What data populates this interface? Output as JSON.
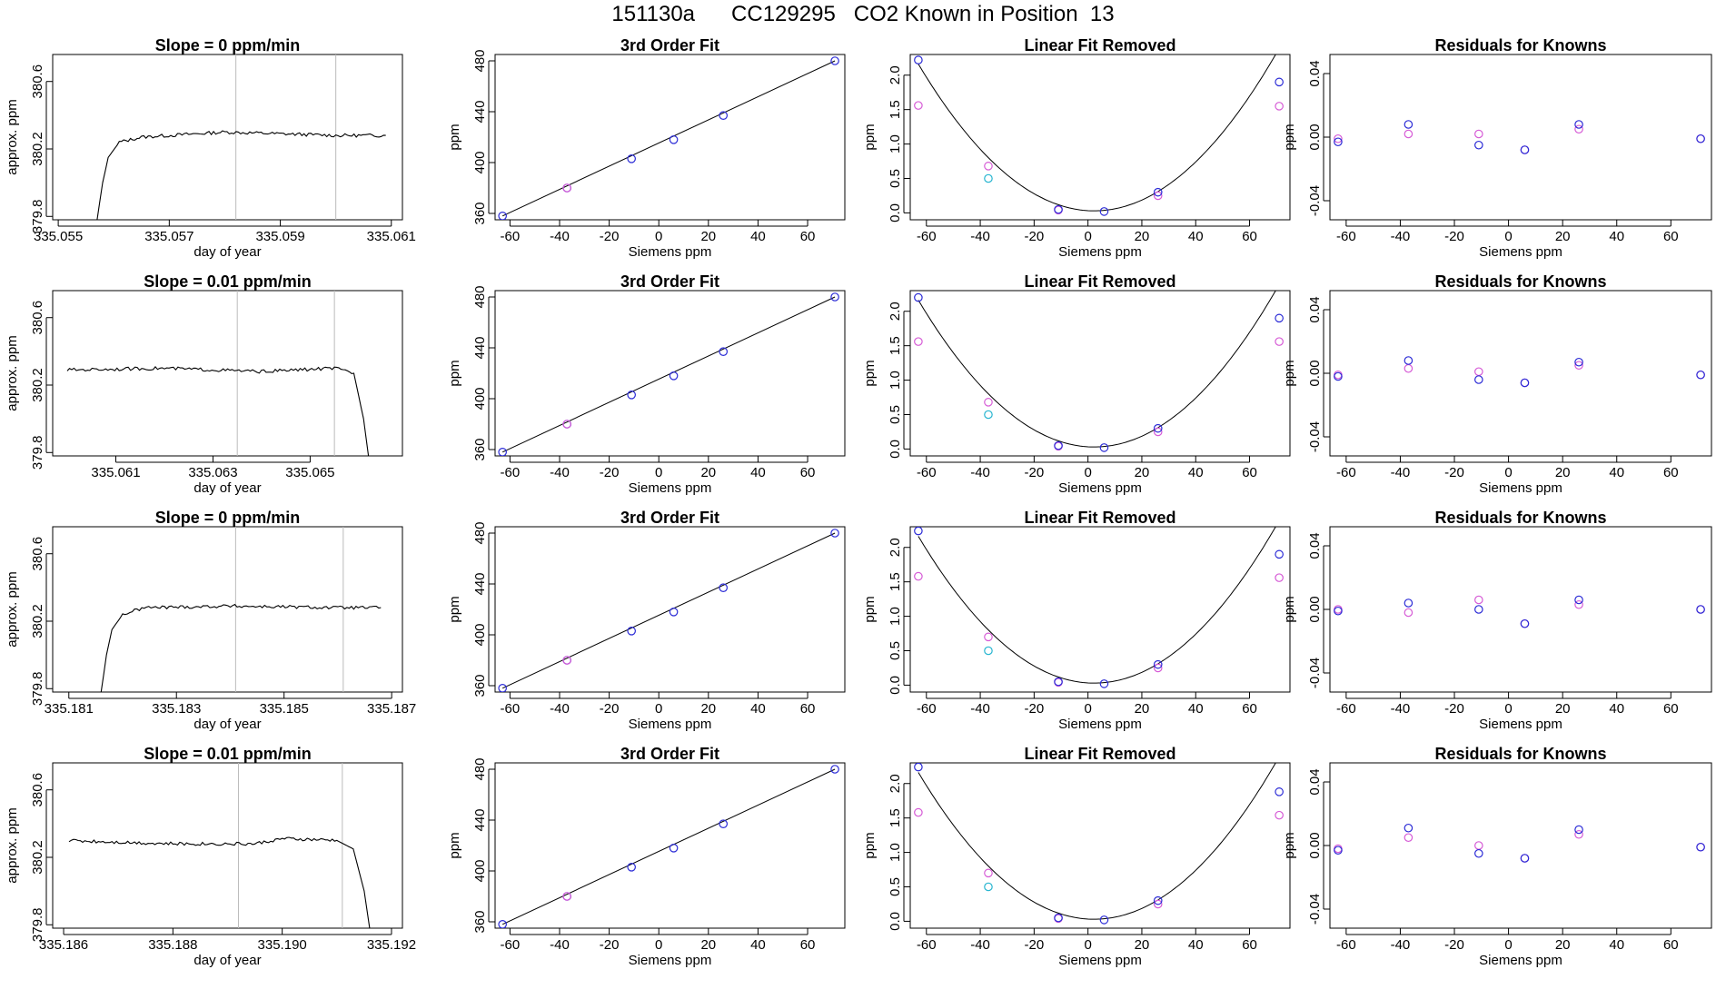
{
  "figure": {
    "title": "151130a      CC129295   CO2 Known in Position  13"
  },
  "chart_data": [
    {
      "panel": "r1-trace",
      "type": "line",
      "title": "Slope =  0  ppm/min",
      "xlabel": "day of year",
      "ylabel": "approx. ppm",
      "xlim": [
        335.0549,
        335.0612
      ],
      "ylim": [
        379.78,
        380.76
      ],
      "x_ticks": [
        335.055,
        335.057,
        335.059,
        335.061
      ],
      "x_tick_labels": [
        "335.055",
        "335.057",
        "335.059",
        "335.061"
      ],
      "y_ticks": [
        379.8,
        380.2,
        380.6
      ],
      "y_tick_labels": [
        "379.8",
        "380.2",
        "380.6"
      ],
      "vlines": [
        335.0582,
        335.06
      ],
      "series": [
        {
          "x": [
            335.0557,
            335.0558,
            335.0559,
            335.0561,
            335.0565,
            335.058,
            335.06,
            335.0609
          ],
          "y": [
            379.78,
            380.0,
            380.15,
            380.24,
            380.27,
            380.3,
            380.28,
            380.28
          ]
        }
      ]
    },
    {
      "panel": "r1-fit",
      "type": "scatter",
      "title": "3rd Order Fit",
      "xlabel": "Siemens ppm",
      "ylabel": "ppm",
      "xlim": [
        -66,
        75
      ],
      "ylim": [
        355,
        485
      ],
      "x_ticks": [
        -60,
        -40,
        -20,
        0,
        20,
        40,
        60
      ],
      "y_ticks": [
        360,
        400,
        440,
        480
      ],
      "points": [
        {
          "x": -63,
          "y": 358
        },
        {
          "x": -37,
          "y": 380
        },
        {
          "x": -11,
          "y": 403
        },
        {
          "x": 6,
          "y": 418
        },
        {
          "x": 26,
          "y": 437
        },
        {
          "x": 71,
          "y": 480
        }
      ],
      "fit_line": {
        "x": [
          -63,
          71
        ],
        "y": [
          358,
          480
        ]
      }
    },
    {
      "panel": "r1-linear",
      "type": "scatter",
      "title": "Linear Fit Removed",
      "xlabel": "Siemens ppm",
      "ylabel": "ppm",
      "xlim": [
        -66,
        75
      ],
      "ylim": [
        -0.1,
        2.3
      ],
      "x_ticks": [
        -60,
        -40,
        -20,
        0,
        20,
        40,
        60
      ],
      "y_ticks": [
        0.0,
        0.5,
        1.0,
        1.5,
        2.0
      ],
      "y_tick_labels": [
        "0.0",
        "0.5",
        "1.0",
        "1.5",
        "2.0"
      ],
      "points_blue": [
        {
          "x": -63,
          "y": 2.22
        },
        {
          "x": -11,
          "y": 0.05
        },
        {
          "x": 6,
          "y": 0.02
        },
        {
          "x": 26,
          "y": 0.3
        },
        {
          "x": 71,
          "y": 1.9
        }
      ],
      "points_magenta": [
        {
          "x": -63,
          "y": 1.56
        },
        {
          "x": -37,
          "y": 0.68
        },
        {
          "x": -11,
          "y": 0.04
        },
        {
          "x": 26,
          "y": 0.25
        },
        {
          "x": 71,
          "y": 1.55
        }
      ],
      "points_cyan": [
        {
          "x": -37,
          "y": 0.5
        }
      ],
      "curve_coeffs": [
        0.0325,
        -0.0023,
        0.0005
      ]
    },
    {
      "panel": "r1-resid",
      "type": "scatter",
      "title": "Residuals for Knowns",
      "xlabel": "Siemens ppm",
      "ylabel": "ppm",
      "xlim": [
        -66,
        75
      ],
      "ylim": [
        -0.052,
        0.052
      ],
      "x_ticks": [
        -60,
        -40,
        -20,
        0,
        20,
        40,
        60
      ],
      "y_ticks": [
        -0.04,
        0.0,
        0.04
      ],
      "y_tick_labels": [
        "-0.04",
        "0.00",
        "0.04"
      ],
      "points_blue": [
        {
          "x": -63,
          "y": -0.003
        },
        {
          "x": -37,
          "y": 0.008
        },
        {
          "x": -11,
          "y": -0.005
        },
        {
          "x": 6,
          "y": -0.008
        },
        {
          "x": 26,
          "y": 0.008
        },
        {
          "x": 71,
          "y": -0.001
        }
      ],
      "points_magenta": [
        {
          "x": -63,
          "y": -0.001
        },
        {
          "x": -37,
          "y": 0.002
        },
        {
          "x": -11,
          "y": 0.002
        },
        {
          "x": 6,
          "y": -0.008
        },
        {
          "x": 26,
          "y": 0.005
        },
        {
          "x": 71,
          "y": -0.001
        }
      ]
    },
    {
      "panel": "r2-trace",
      "type": "line",
      "title": "Slope =  0.01  ppm/min",
      "xlabel": "day of year",
      "ylabel": "approx. ppm",
      "xlim": [
        335.0597,
        335.0669
      ],
      "ylim": [
        379.78,
        380.76
      ],
      "x_ticks": [
        335.061,
        335.063,
        335.065
      ],
      "x_tick_labels": [
        "335.061",
        "335.063",
        "335.065"
      ],
      "y_ticks": [
        379.8,
        380.2,
        380.6
      ],
      "y_tick_labels": [
        "379.8",
        "380.2",
        "380.6"
      ],
      "vlines": [
        335.0635,
        335.0655
      ],
      "series": [
        {
          "x": [
            335.06,
            335.062,
            335.064,
            335.0655,
            335.0659,
            335.0661,
            335.0662
          ],
          "y": [
            380.29,
            380.3,
            380.28,
            380.3,
            380.27,
            380.0,
            379.78
          ]
        }
      ]
    },
    {
      "panel": "r2-fit",
      "type": "scatter",
      "title": "3rd Order Fit",
      "xlabel": "Siemens ppm",
      "ylabel": "ppm",
      "xlim": [
        -66,
        75
      ],
      "ylim": [
        355,
        485
      ],
      "x_ticks": [
        -60,
        -40,
        -20,
        0,
        20,
        40,
        60
      ],
      "y_ticks": [
        360,
        400,
        440,
        480
      ],
      "points": [
        {
          "x": -63,
          "y": 358
        },
        {
          "x": -37,
          "y": 380
        },
        {
          "x": -11,
          "y": 403
        },
        {
          "x": 6,
          "y": 418
        },
        {
          "x": 26,
          "y": 437
        },
        {
          "x": 71,
          "y": 480
        }
      ],
      "fit_line": {
        "x": [
          -63,
          71
        ],
        "y": [
          358,
          480
        ]
      }
    },
    {
      "panel": "r2-linear",
      "type": "scatter",
      "title": "Linear Fit Removed",
      "xlabel": "Siemens ppm",
      "ylabel": "ppm",
      "xlim": [
        -66,
        75
      ],
      "ylim": [
        -0.1,
        2.3
      ],
      "x_ticks": [
        -60,
        -40,
        -20,
        0,
        20,
        40,
        60
      ],
      "y_ticks": [
        0.0,
        0.5,
        1.0,
        1.5,
        2.0
      ],
      "y_tick_labels": [
        "0.0",
        "0.5",
        "1.0",
        "1.5",
        "2.0"
      ],
      "points_blue": [
        {
          "x": -63,
          "y": 2.2
        },
        {
          "x": -11,
          "y": 0.05
        },
        {
          "x": 6,
          "y": 0.02
        },
        {
          "x": 26,
          "y": 0.3
        },
        {
          "x": 71,
          "y": 1.9
        }
      ],
      "points_magenta": [
        {
          "x": -63,
          "y": 1.56
        },
        {
          "x": -37,
          "y": 0.68
        },
        {
          "x": -11,
          "y": 0.04
        },
        {
          "x": 26,
          "y": 0.25
        },
        {
          "x": 71,
          "y": 1.56
        }
      ],
      "points_cyan": [
        {
          "x": -37,
          "y": 0.5
        }
      ],
      "curve_coeffs": [
        0.0325,
        -0.0023,
        0.0005
      ]
    },
    {
      "panel": "r2-resid",
      "type": "scatter",
      "title": "Residuals for Knowns",
      "xlabel": "Siemens ppm",
      "ylabel": "ppm",
      "xlim": [
        -66,
        75
      ],
      "ylim": [
        -0.052,
        0.052
      ],
      "x_ticks": [
        -60,
        -40,
        -20,
        0,
        20,
        40,
        60
      ],
      "y_ticks": [
        -0.04,
        0.0,
        0.04
      ],
      "y_tick_labels": [
        "-0.04",
        "0.00",
        "0.04"
      ],
      "points_blue": [
        {
          "x": -63,
          "y": -0.002
        },
        {
          "x": -37,
          "y": 0.008
        },
        {
          "x": -11,
          "y": -0.004
        },
        {
          "x": 6,
          "y": -0.006
        },
        {
          "x": 26,
          "y": 0.007
        },
        {
          "x": 71,
          "y": -0.001
        }
      ],
      "points_magenta": [
        {
          "x": -63,
          "y": -0.001
        },
        {
          "x": -37,
          "y": 0.003
        },
        {
          "x": -11,
          "y": 0.001
        },
        {
          "x": 6,
          "y": -0.006
        },
        {
          "x": 26,
          "y": 0.005
        },
        {
          "x": 71,
          "y": -0.001
        }
      ]
    },
    {
      "panel": "r3-trace",
      "type": "line",
      "title": "Slope =  0  ppm/min",
      "xlabel": "day of year",
      "ylabel": "approx. ppm",
      "xlim": [
        335.1807,
        335.1872
      ],
      "ylim": [
        379.78,
        380.76
      ],
      "x_ticks": [
        335.181,
        335.183,
        335.185,
        335.187
      ],
      "x_tick_labels": [
        "335.181",
        "335.183",
        "335.185",
        "335.187"
      ],
      "y_ticks": [
        379.8,
        380.2,
        380.6
      ],
      "y_tick_labels": [
        "379.8",
        "380.2",
        "380.6"
      ],
      "vlines": [
        335.1841,
        335.1861
      ],
      "series": [
        {
          "x": [
            335.1816,
            335.1817,
            335.1818,
            335.182,
            335.1824,
            335.184,
            335.186,
            335.1868
          ],
          "y": [
            379.78,
            380.0,
            380.15,
            380.24,
            380.28,
            380.29,
            380.28,
            380.28
          ]
        }
      ]
    },
    {
      "panel": "r3-fit",
      "type": "scatter",
      "title": "3rd Order Fit",
      "xlabel": "Siemens ppm",
      "ylabel": "ppm",
      "xlim": [
        -66,
        75
      ],
      "ylim": [
        355,
        485
      ],
      "x_ticks": [
        -60,
        -40,
        -20,
        0,
        20,
        40,
        60
      ],
      "y_ticks": [
        360,
        400,
        440,
        480
      ],
      "points": [
        {
          "x": -63,
          "y": 358
        },
        {
          "x": -37,
          "y": 380
        },
        {
          "x": -11,
          "y": 403
        },
        {
          "x": 6,
          "y": 418
        },
        {
          "x": 26,
          "y": 437
        },
        {
          "x": 71,
          "y": 480
        }
      ],
      "fit_line": {
        "x": [
          -63,
          71
        ],
        "y": [
          358,
          480
        ]
      }
    },
    {
      "panel": "r3-linear",
      "type": "scatter",
      "title": "Linear Fit Removed",
      "xlabel": "Siemens ppm",
      "ylabel": "ppm",
      "xlim": [
        -66,
        75
      ],
      "ylim": [
        -0.1,
        2.3
      ],
      "x_ticks": [
        -60,
        -40,
        -20,
        0,
        20,
        40,
        60
      ],
      "y_ticks": [
        0.0,
        0.5,
        1.0,
        1.5,
        2.0
      ],
      "y_tick_labels": [
        "0.0",
        "0.5",
        "1.0",
        "1.5",
        "2.0"
      ],
      "points_blue": [
        {
          "x": -63,
          "y": 2.24
        },
        {
          "x": -11,
          "y": 0.05
        },
        {
          "x": 6,
          "y": 0.02
        },
        {
          "x": 26,
          "y": 0.3
        },
        {
          "x": 71,
          "y": 1.9
        }
      ],
      "points_magenta": [
        {
          "x": -63,
          "y": 1.58
        },
        {
          "x": -37,
          "y": 0.7
        },
        {
          "x": -11,
          "y": 0.04
        },
        {
          "x": 26,
          "y": 0.25
        },
        {
          "x": 71,
          "y": 1.56
        }
      ],
      "points_cyan": [
        {
          "x": -37,
          "y": 0.5
        }
      ],
      "curve_coeffs": [
        0.0325,
        -0.0023,
        0.0005
      ]
    },
    {
      "panel": "r3-resid",
      "type": "scatter",
      "title": "Residuals for Knowns",
      "xlabel": "Siemens ppm",
      "ylabel": "ppm",
      "xlim": [
        -66,
        75
      ],
      "ylim": [
        -0.052,
        0.052
      ],
      "x_ticks": [
        -60,
        -40,
        -20,
        0,
        20,
        40,
        60
      ],
      "y_ticks": [
        -0.04,
        0.0,
        0.04
      ],
      "y_tick_labels": [
        "-0.04",
        "0.00",
        "0.04"
      ],
      "points_blue": [
        {
          "x": -63,
          "y": -0.001
        },
        {
          "x": -37,
          "y": 0.004
        },
        {
          "x": -11,
          "y": 0.0
        },
        {
          "x": 6,
          "y": -0.009
        },
        {
          "x": 26,
          "y": 0.006
        },
        {
          "x": 71,
          "y": 0.0
        }
      ],
      "points_magenta": [
        {
          "x": -63,
          "y": 0.0
        },
        {
          "x": -37,
          "y": -0.002
        },
        {
          "x": -11,
          "y": 0.006
        },
        {
          "x": 6,
          "y": -0.009
        },
        {
          "x": 26,
          "y": 0.003
        },
        {
          "x": 71,
          "y": 0.0
        }
      ]
    },
    {
      "panel": "r4-trace",
      "type": "line",
      "title": "Slope =  0.01  ppm/min",
      "xlabel": "day of year",
      "ylabel": "approx. ppm",
      "xlim": [
        335.1858,
        335.1922
      ],
      "ylim": [
        379.78,
        380.76
      ],
      "x_ticks": [
        335.186,
        335.188,
        335.19,
        335.192
      ],
      "x_tick_labels": [
        "335.186",
        "335.188",
        "335.190",
        "335.192"
      ],
      "y_ticks": [
        379.8,
        380.2,
        380.6
      ],
      "y_tick_labels": [
        "379.8",
        "380.2",
        "380.6"
      ],
      "vlines": [
        335.1892,
        335.1911
      ],
      "series": [
        {
          "x": [
            335.1861,
            335.188,
            335.1895,
            335.19,
            335.191,
            335.1913,
            335.1915,
            335.1916
          ],
          "y": [
            380.3,
            380.28,
            380.28,
            380.31,
            380.3,
            380.25,
            380.0,
            379.78
          ]
        }
      ]
    },
    {
      "panel": "r4-fit",
      "type": "scatter",
      "title": "3rd Order Fit",
      "xlabel": "Siemens ppm",
      "ylabel": "ppm",
      "xlim": [
        -66,
        75
      ],
      "ylim": [
        355,
        485
      ],
      "x_ticks": [
        -60,
        -40,
        -20,
        0,
        20,
        40,
        60
      ],
      "y_ticks": [
        360,
        400,
        440,
        480
      ],
      "points": [
        {
          "x": -63,
          "y": 358
        },
        {
          "x": -37,
          "y": 380
        },
        {
          "x": -11,
          "y": 403
        },
        {
          "x": 6,
          "y": 418
        },
        {
          "x": 26,
          "y": 437
        },
        {
          "x": 71,
          "y": 480
        }
      ],
      "fit_line": {
        "x": [
          -63,
          71
        ],
        "y": [
          358,
          480
        ]
      }
    },
    {
      "panel": "r4-linear",
      "type": "scatter",
      "title": "Linear Fit Removed",
      "xlabel": "Siemens ppm",
      "ylabel": "ppm",
      "xlim": [
        -66,
        75
      ],
      "ylim": [
        -0.1,
        2.3
      ],
      "x_ticks": [
        -60,
        -40,
        -20,
        0,
        20,
        40,
        60
      ],
      "y_ticks": [
        0.0,
        0.5,
        1.0,
        1.5,
        2.0
      ],
      "y_tick_labels": [
        "0.0",
        "0.5",
        "1.0",
        "1.5",
        "2.0"
      ],
      "points_blue": [
        {
          "x": -63,
          "y": 2.24
        },
        {
          "x": -11,
          "y": 0.05
        },
        {
          "x": 6,
          "y": 0.02
        },
        {
          "x": 26,
          "y": 0.3
        },
        {
          "x": 71,
          "y": 1.88
        }
      ],
      "points_magenta": [
        {
          "x": -63,
          "y": 1.58
        },
        {
          "x": -37,
          "y": 0.7
        },
        {
          "x": -11,
          "y": 0.04
        },
        {
          "x": 26,
          "y": 0.25
        },
        {
          "x": 71,
          "y": 1.54
        }
      ],
      "points_cyan": [
        {
          "x": -37,
          "y": 0.5
        }
      ],
      "curve_coeffs": [
        0.0325,
        -0.0023,
        0.0005
      ]
    },
    {
      "panel": "r4-resid",
      "type": "scatter",
      "title": "Residuals for Knowns",
      "xlabel": "Siemens ppm",
      "ylabel": "ppm",
      "xlim": [
        -66,
        75
      ],
      "ylim": [
        -0.052,
        0.052
      ],
      "x_ticks": [
        -60,
        -40,
        -20,
        0,
        20,
        40,
        60
      ],
      "y_ticks": [
        -0.04,
        0.0,
        0.04
      ],
      "y_tick_labels": [
        "-0.04",
        "0.00",
        "0.04"
      ],
      "points_blue": [
        {
          "x": -63,
          "y": -0.003
        },
        {
          "x": -37,
          "y": 0.011
        },
        {
          "x": -11,
          "y": -0.005
        },
        {
          "x": 6,
          "y": -0.008
        },
        {
          "x": 26,
          "y": 0.01
        },
        {
          "x": 71,
          "y": -0.001
        }
      ],
      "points_magenta": [
        {
          "x": -63,
          "y": -0.002
        },
        {
          "x": -37,
          "y": 0.005
        },
        {
          "x": -11,
          "y": 0.0
        },
        {
          "x": 6,
          "y": -0.008
        },
        {
          "x": 26,
          "y": 0.007
        },
        {
          "x": 71,
          "y": -0.001
        }
      ]
    }
  ]
}
